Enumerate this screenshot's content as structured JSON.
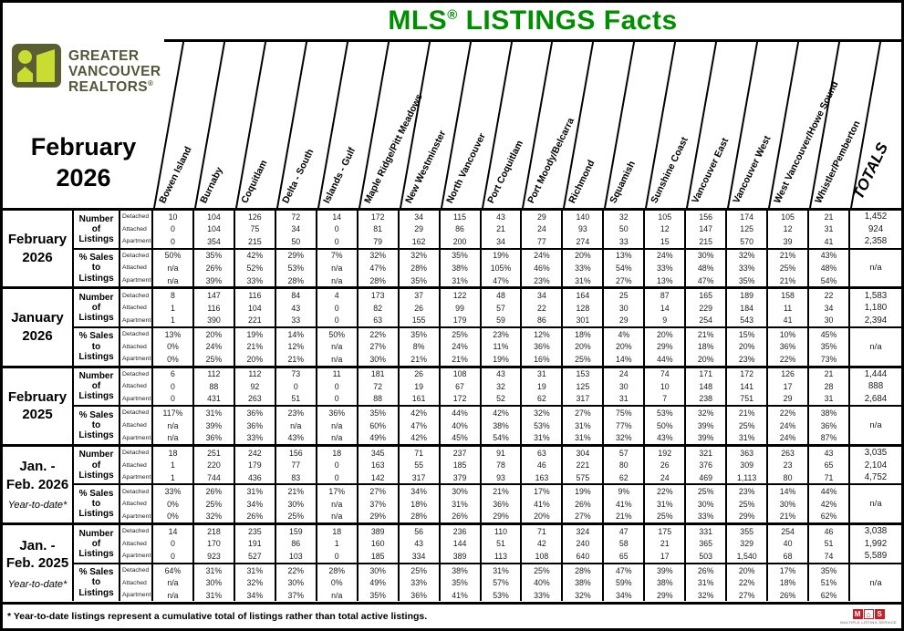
{
  "title": {
    "main_pre": "MLS",
    "registered": "®",
    "main_post": " LISTINGS Facts"
  },
  "brand": {
    "name_lines": [
      "GREATER",
      "VANCOUVER",
      "REALTORS"
    ],
    "reg_mark": "®"
  },
  "report_period": {
    "line1": "February",
    "line2": "2026"
  },
  "colors": {
    "title_green": "#008F00",
    "brand_olive": "#54573a",
    "brand_lime": "#c9dc31",
    "mls_red": "#c32127"
  },
  "columns": [
    "Bowen Island",
    "Burnaby",
    "Coquitlam",
    "Delta - South",
    "Islands - Gulf",
    "Maple Ridge/Pitt Meadows",
    "New Westminster",
    "North Vancouver",
    "Port Coquitlam",
    "Port Moody/Belcarra",
    "Richmond",
    "Squamish",
    "Sunshine Coast",
    "Vancouver East",
    "Vancouver West",
    "West Vancouver/Howe Sound",
    "Whistler/Pemberton"
  ],
  "totals_label": "TOTALS",
  "row_labels": {
    "listings_group": [
      "Number",
      "of",
      "Listings"
    ],
    "sales_group": [
      "% Sales to",
      "Listings"
    ],
    "property_types": [
      "Detached",
      "Attached",
      "Apartment"
    ]
  },
  "blocks": [
    {
      "period_lines": [
        "February",
        "2026"
      ],
      "ytd": "",
      "listings": {
        "rows": [
          [
            "10",
            "104",
            "126",
            "72",
            "14",
            "172",
            "34",
            "115",
            "43",
            "29",
            "140",
            "32",
            "105",
            "156",
            "174",
            "105",
            "21",
            "1,452"
          ],
          [
            "0",
            "104",
            "75",
            "34",
            "0",
            "81",
            "29",
            "86",
            "21",
            "24",
            "93",
            "50",
            "12",
            "147",
            "125",
            "12",
            "31",
            "924"
          ],
          [
            "0",
            "354",
            "215",
            "50",
            "0",
            "79",
            "162",
            "200",
            "34",
            "77",
            "274",
            "33",
            "15",
            "215",
            "570",
            "39",
            "41",
            "2,358"
          ]
        ]
      },
      "sales": {
        "rows": [
          [
            "50%",
            "35%",
            "42%",
            "29%",
            "7%",
            "32%",
            "32%",
            "35%",
            "19%",
            "24%",
            "20%",
            "13%",
            "24%",
            "30%",
            "32%",
            "21%",
            "43%"
          ],
          [
            "n/a",
            "26%",
            "52%",
            "53%",
            "n/a",
            "47%",
            "28%",
            "38%",
            "105%",
            "46%",
            "33%",
            "54%",
            "33%",
            "48%",
            "33%",
            "25%",
            "48%"
          ],
          [
            "n/a",
            "39%",
            "33%",
            "28%",
            "n/a",
            "28%",
            "35%",
            "31%",
            "47%",
            "23%",
            "31%",
            "27%",
            "13%",
            "47%",
            "35%",
            "21%",
            "54%"
          ]
        ],
        "totals": "n/a"
      }
    },
    {
      "period_lines": [
        "January",
        "2026"
      ],
      "ytd": "",
      "listings": {
        "rows": [
          [
            "8",
            "147",
            "116",
            "84",
            "4",
            "173",
            "37",
            "122",
            "48",
            "34",
            "164",
            "25",
            "87",
            "165",
            "189",
            "158",
            "22",
            "1,583"
          ],
          [
            "1",
            "116",
            "104",
            "43",
            "0",
            "82",
            "26",
            "99",
            "57",
            "22",
            "128",
            "30",
            "14",
            "229",
            "184",
            "11",
            "34",
            "1,180"
          ],
          [
            "1",
            "390",
            "221",
            "33",
            "0",
            "63",
            "155",
            "179",
            "59",
            "86",
            "301",
            "29",
            "9",
            "254",
            "543",
            "41",
            "30",
            "2,394"
          ]
        ]
      },
      "sales": {
        "rows": [
          [
            "13%",
            "20%",
            "19%",
            "14%",
            "50%",
            "22%",
            "35%",
            "25%",
            "23%",
            "12%",
            "18%",
            "4%",
            "20%",
            "21%",
            "15%",
            "10%",
            "45%"
          ],
          [
            "0%",
            "24%",
            "21%",
            "12%",
            "n/a",
            "27%",
            "8%",
            "24%",
            "11%",
            "36%",
            "20%",
            "20%",
            "29%",
            "18%",
            "20%",
            "36%",
            "35%"
          ],
          [
            "0%",
            "25%",
            "20%",
            "21%",
            "n/a",
            "30%",
            "21%",
            "21%",
            "19%",
            "16%",
            "25%",
            "14%",
            "44%",
            "20%",
            "23%",
            "22%",
            "73%"
          ]
        ],
        "totals": "n/a"
      }
    },
    {
      "period_lines": [
        "February",
        "2025"
      ],
      "ytd": "",
      "listings": {
        "rows": [
          [
            "6",
            "112",
            "112",
            "73",
            "11",
            "181",
            "26",
            "108",
            "43",
            "31",
            "153",
            "24",
            "74",
            "171",
            "172",
            "126",
            "21",
            "1,444"
          ],
          [
            "0",
            "88",
            "92",
            "0",
            "0",
            "72",
            "19",
            "67",
            "32",
            "19",
            "125",
            "30",
            "10",
            "148",
            "141",
            "17",
            "28",
            "888"
          ],
          [
            "0",
            "431",
            "263",
            "51",
            "0",
            "88",
            "161",
            "172",
            "52",
            "62",
            "317",
            "31",
            "7",
            "238",
            "751",
            "29",
            "31",
            "2,684"
          ]
        ]
      },
      "sales": {
        "rows": [
          [
            "117%",
            "31%",
            "36%",
            "23%",
            "36%",
            "35%",
            "42%",
            "44%",
            "42%",
            "32%",
            "27%",
            "75%",
            "53%",
            "32%",
            "21%",
            "22%",
            "38%"
          ],
          [
            "n/a",
            "39%",
            "36%",
            "n/a",
            "n/a",
            "60%",
            "47%",
            "40%",
            "38%",
            "53%",
            "31%",
            "77%",
            "50%",
            "39%",
            "25%",
            "24%",
            "36%"
          ],
          [
            "n/a",
            "36%",
            "33%",
            "43%",
            "n/a",
            "49%",
            "42%",
            "45%",
            "54%",
            "31%",
            "31%",
            "32%",
            "43%",
            "39%",
            "31%",
            "24%",
            "87%"
          ]
        ],
        "totals": "n/a"
      }
    },
    {
      "period_lines": [
        "Jan. -",
        "Feb. 2026"
      ],
      "ytd": "Year-to-date*",
      "listings": {
        "rows": [
          [
            "18",
            "251",
            "242",
            "156",
            "18",
            "345",
            "71",
            "237",
            "91",
            "63",
            "304",
            "57",
            "192",
            "321",
            "363",
            "263",
            "43",
            "3,035"
          ],
          [
            "1",
            "220",
            "179",
            "77",
            "0",
            "163",
            "55",
            "185",
            "78",
            "46",
            "221",
            "80",
            "26",
            "376",
            "309",
            "23",
            "65",
            "2,104"
          ],
          [
            "1",
            "744",
            "436",
            "83",
            "0",
            "142",
            "317",
            "379",
            "93",
            "163",
            "575",
            "62",
            "24",
            "469",
            "1,113",
            "80",
            "71",
            "4,752"
          ]
        ]
      },
      "sales": {
        "rows": [
          [
            "33%",
            "26%",
            "31%",
            "21%",
            "17%",
            "27%",
            "34%",
            "30%",
            "21%",
            "17%",
            "19%",
            "9%",
            "22%",
            "25%",
            "23%",
            "14%",
            "44%"
          ],
          [
            "0%",
            "25%",
            "34%",
            "30%",
            "n/a",
            "37%",
            "18%",
            "31%",
            "36%",
            "41%",
            "26%",
            "41%",
            "31%",
            "30%",
            "25%",
            "30%",
            "42%"
          ],
          [
            "0%",
            "32%",
            "26%",
            "25%",
            "n/a",
            "29%",
            "28%",
            "26%",
            "29%",
            "20%",
            "27%",
            "21%",
            "25%",
            "33%",
            "29%",
            "21%",
            "62%"
          ]
        ],
        "totals": "n/a"
      }
    },
    {
      "period_lines": [
        "Jan. -",
        "Feb. 2025"
      ],
      "ytd": "Year-to-date*",
      "listings": {
        "rows": [
          [
            "14",
            "218",
            "235",
            "159",
            "18",
            "389",
            "56",
            "236",
            "110",
            "71",
            "324",
            "47",
            "175",
            "331",
            "355",
            "254",
            "46",
            "3,038"
          ],
          [
            "0",
            "170",
            "191",
            "86",
            "1",
            "160",
            "43",
            "144",
            "51",
            "42",
            "240",
            "58",
            "21",
            "365",
            "329",
            "40",
            "51",
            "1,992"
          ],
          [
            "0",
            "923",
            "527",
            "103",
            "0",
            "185",
            "334",
            "389",
            "113",
            "108",
            "640",
            "65",
            "17",
            "503",
            "1,540",
            "68",
            "74",
            "5,589"
          ]
        ]
      },
      "sales": {
        "rows": [
          [
            "64%",
            "31%",
            "31%",
            "22%",
            "28%",
            "30%",
            "25%",
            "38%",
            "31%",
            "25%",
            "28%",
            "47%",
            "39%",
            "26%",
            "20%",
            "17%",
            "35%"
          ],
          [
            "n/a",
            "30%",
            "32%",
            "30%",
            "0%",
            "49%",
            "33%",
            "35%",
            "57%",
            "40%",
            "38%",
            "59%",
            "38%",
            "31%",
            "22%",
            "18%",
            "51%"
          ],
          [
            "n/a",
            "31%",
            "34%",
            "37%",
            "n/a",
            "35%",
            "36%",
            "41%",
            "53%",
            "33%",
            "32%",
            "34%",
            "29%",
            "32%",
            "27%",
            "26%",
            "62%"
          ]
        ],
        "totals": "n/a"
      }
    }
  ],
  "footnote": "* Year-to-date listings represent a cumulative total of listings rather than total active listings.",
  "mls_logo": {
    "m": "M",
    "house": "⌂",
    "s": "S",
    "caption": "MULTIPLE LISTING SERVICE"
  }
}
